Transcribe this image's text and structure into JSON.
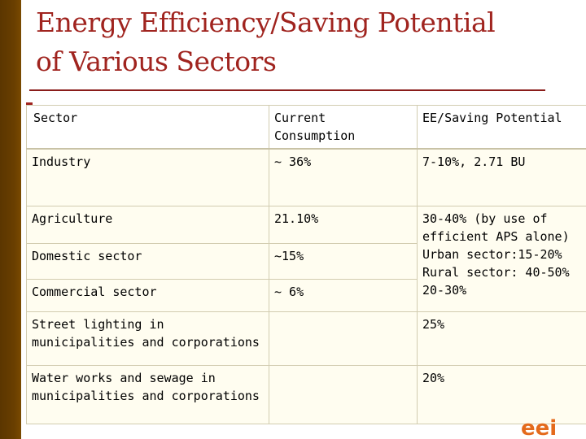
{
  "slide": {
    "title_line1": "Energy Efficiency/Saving Potential",
    "title_line2": "of Various Sectors"
  },
  "table": {
    "headers": {
      "sector": "Sector",
      "current_consumption": "Current Consumption",
      "ee_potential": "EE/Saving Potential"
    },
    "rows": {
      "industry": {
        "sector": "Industry",
        "consumption": "~ 36%",
        "potential": "7-10%, 2.71 BU"
      },
      "agriculture": {
        "sector": "Agriculture",
        "consumption": "21.10%"
      },
      "domestic": {
        "sector": "Domestic sector",
        "consumption": "~15%"
      },
      "commercial": {
        "sector": "Commercial sector",
        "consumption": "~ 6%"
      },
      "street": {
        "sector": "Street lighting in municipalities and corporations",
        "consumption": "",
        "potential": "25%"
      },
      "water": {
        "sector": "Water works and sewage in municipalities and corporations",
        "consumption": "",
        "potential": "20%"
      }
    },
    "merged_potential": {
      "line1": "30-40% (by use of",
      "line2": "efficient APS alone)",
      "line3": "Urban sector:15-20%",
      "line4": "Rural sector: 40-50%",
      "line5": "20-30%"
    }
  },
  "footer": {
    "logo_text": "eei"
  },
  "colors": {
    "title": "#a0241f",
    "left_bar": "#6a3f00",
    "cell_bg": "#fffdf0",
    "logo": "#e46a1c"
  }
}
